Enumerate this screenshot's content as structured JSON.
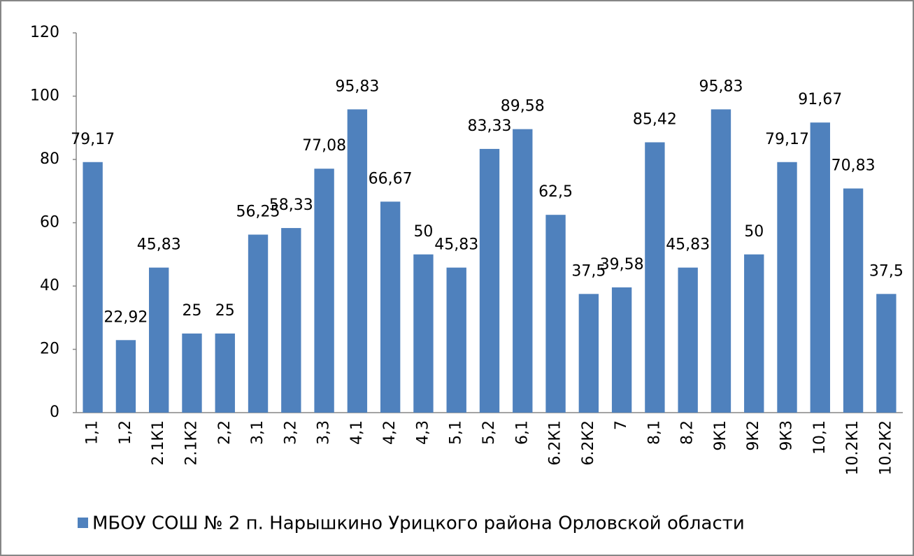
{
  "chart_data": {
    "type": "bar",
    "categories": [
      "1,1",
      "1,2",
      "2.1К1",
      "2.1К2",
      "2,2",
      "3,1",
      "3,2",
      "3,3",
      "4,1",
      "4,2",
      "4,3",
      "5,1",
      "5,2",
      "6,1",
      "6.2К1",
      "6.2К2",
      "7",
      "8,1",
      "8,2",
      "9К1",
      "9К2",
      "9К3",
      "10,1",
      "10.2К1",
      "10.2К2"
    ],
    "series": [
      {
        "name": "МБОУ СОШ № 2 п. Нарышкино Урицкого района Орловской области",
        "color": "#4f81bd",
        "values": [
          79.17,
          22.92,
          45.83,
          25,
          25,
          56.25,
          58.33,
          77.08,
          95.83,
          66.67,
          50,
          45.83,
          83.33,
          89.58,
          62.5,
          37.5,
          39.58,
          85.42,
          45.83,
          95.83,
          50,
          79.17,
          91.67,
          70.83,
          37.5
        ],
        "value_labels": [
          "79,17",
          "22,92",
          "45,83",
          "25",
          "25",
          "56,25",
          "58,33",
          "77,08",
          "95,83",
          "66,67",
          "50",
          "45,83",
          "83,33",
          "89,58",
          "62,5",
          "37,5",
          "39,58",
          "85,42",
          "45,83",
          "95,83",
          "50",
          "79,17",
          "91,67",
          "70,83",
          "37,5"
        ]
      }
    ],
    "ylim": [
      0,
      120
    ],
    "yticks": [
      0,
      20,
      40,
      60,
      80,
      100,
      120
    ],
    "grid": false,
    "legend": "bottom"
  }
}
